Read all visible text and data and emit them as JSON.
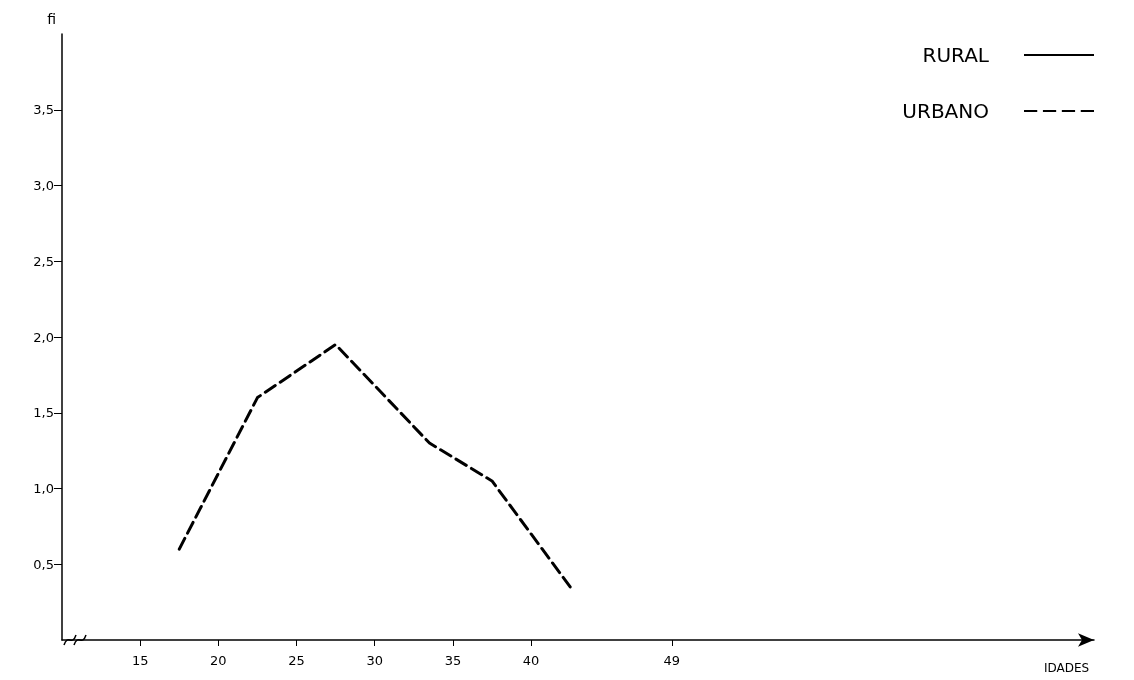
{
  "chart_data": {
    "type": "line",
    "xlabel": "IDADES",
    "ylabel": "fi",
    "x": [
      17.5,
      22.5,
      27.5,
      33.5,
      37.5,
      42.5
    ],
    "series": [
      {
        "name": "RURAL",
        "color": "#000000",
        "line_style": "solid",
        "values": [
          null,
          null,
          null,
          null,
          null,
          null
        ]
      },
      {
        "name": "URBANO",
        "color": "#000000",
        "line_style": "dashed",
        "values": [
          0.6,
          1.6,
          1.95,
          1.3,
          1.05,
          0.35
        ]
      }
    ],
    "xlim": [
      10,
      76
    ],
    "xticks": [
      15,
      20,
      25,
      30,
      35,
      40,
      49
    ],
    "ylim": [
      0,
      4
    ],
    "yticks": [
      {
        "value": 0.5,
        "label": "0,5"
      },
      {
        "value": 1,
        "label": "1,0"
      },
      {
        "value": 1.5,
        "label": "1,5"
      },
      {
        "value": 2,
        "label": "2,0"
      },
      {
        "value": 2.5,
        "label": "2,5"
      },
      {
        "value": 3,
        "label": "3,0"
      },
      {
        "value": 3.5,
        "label": "3,5"
      }
    ],
    "grid": false,
    "legend": "top right",
    "marker": "none"
  }
}
